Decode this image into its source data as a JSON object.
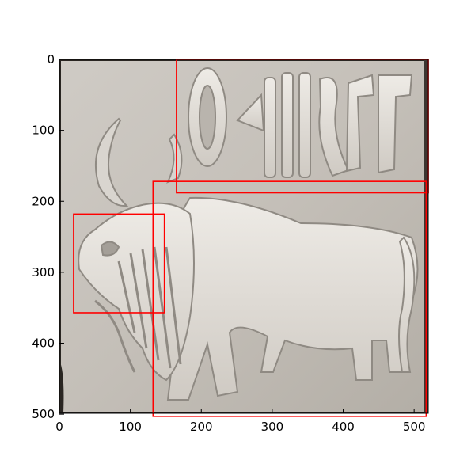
{
  "image": {
    "subject": "Indus Valley stone seal, carved bull with inscription signs",
    "extent": {
      "x": [
        0,
        520
      ],
      "y": [
        0,
        505
      ]
    }
  },
  "axes": {
    "x_ticks": [
      {
        "value": 0,
        "label": "0"
      },
      {
        "value": 100,
        "label": "100"
      },
      {
        "value": 200,
        "label": "200"
      },
      {
        "value": 300,
        "label": "300"
      },
      {
        "value": 400,
        "label": "400"
      },
      {
        "value": 500,
        "label": "500"
      }
    ],
    "y_ticks": [
      {
        "value": 0,
        "label": "0"
      },
      {
        "value": 100,
        "label": "100"
      },
      {
        "value": 200,
        "label": "200"
      },
      {
        "value": 300,
        "label": "300"
      },
      {
        "value": 400,
        "label": "400"
      },
      {
        "value": 500,
        "label": "500"
      }
    ]
  },
  "regions": [
    {
      "name": "inscription-box",
      "x0": 165,
      "y0": 0,
      "x1": 520,
      "y1": 188
    },
    {
      "name": "head-box",
      "x0": 20,
      "y0": 218,
      "x1": 148,
      "y1": 357
    },
    {
      "name": "body-box",
      "x0": 132,
      "y0": 172,
      "x1": 517,
      "y1": 503
    }
  ],
  "colors": {
    "box_stroke": "#ff0000",
    "stone_light": "#d6d2cc",
    "stone_mid": "#b9b4ad",
    "stone_dark": "#8f8a83",
    "frame": "#1a1a1a"
  }
}
